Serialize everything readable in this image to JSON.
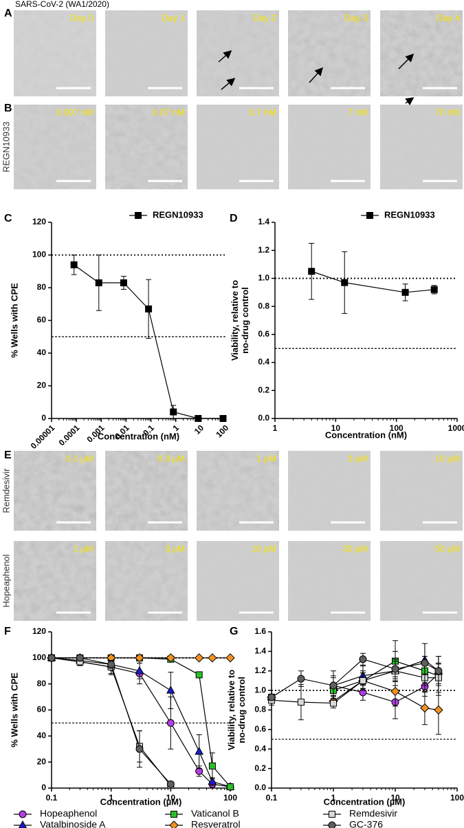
{
  "title": "SARS-CoV-2 (WA1/2020)",
  "panel_labels": [
    "A",
    "B",
    "C",
    "D",
    "E",
    "F",
    "G"
  ],
  "micrographs": [
    {
      "label": null,
      "images": [
        "Day 0",
        "Day 1",
        "Day 2",
        "Day 3",
        "Day 4"
      ]
    },
    {
      "label": "REGN10933",
      "images": [
        "0.007 nM",
        "0.07 nM",
        "0.7 nM",
        "7 nM",
        "70 nM"
      ]
    },
    {
      "label": "Remdesivir",
      "images": [
        "0.1 µM",
        "0.3 µM",
        "1 µM",
        "3 µM",
        "10 µM"
      ]
    },
    {
      "label": "Hopeaphenol",
      "images": [
        "1 µM",
        "3 µM",
        "10 µM",
        "30 µM",
        "50 µM"
      ]
    }
  ],
  "chart_data": [
    {
      "type": "line",
      "xlabel": "Concentration (nM)",
      "ylabel": [
        "% Wells with CPE"
      ],
      "xscale": "log",
      "xlim": [
        1e-05,
        100
      ],
      "xticks": [
        1e-05,
        0.0001,
        0.001,
        0.01,
        0.1,
        1,
        10,
        100
      ],
      "xtick_rotation": -45,
      "ylim": [
        0,
        120
      ],
      "yticks": [
        0,
        20,
        40,
        60,
        80,
        100,
        120
      ],
      "reference_lines": [
        100,
        50
      ],
      "legend": "upper right",
      "x": [
        8e-05,
        0.0008,
        0.008,
        0.08,
        0.8,
        8,
        80
      ],
      "series": [
        {
          "name": "REGN10933",
          "color": "#000000",
          "marker": "square",
          "values": [
            94,
            83,
            83,
            67,
            4,
            0,
            0
          ],
          "errors": [
            6,
            17,
            4,
            18,
            4,
            0,
            0
          ]
        }
      ]
    },
    {
      "type": "line",
      "xlabel": "Concentration (nM)",
      "ylabel": [
        "Viability, relative to",
        "no-drug control"
      ],
      "xscale": "log",
      "xlim": [
        1,
        1000
      ],
      "xticks": [
        1,
        10,
        100,
        1000
      ],
      "ylim": [
        0,
        1.4
      ],
      "yticks": [
        {
          "value": 0,
          "label": "0.0"
        },
        0.2,
        0.4,
        0.6,
        0.8,
        {
          "value": 1,
          "label": "1.0"
        },
        1.2,
        1.4
      ],
      "reference_lines": [
        1,
        0.5
      ],
      "legend": "upper right",
      "x": [
        4,
        14,
        140,
        420
      ],
      "series": [
        {
          "name": "REGN10933",
          "color": "#000000",
          "marker": "square",
          "values": [
            1.05,
            0.97,
            0.9,
            0.92
          ],
          "errors": [
            0.2,
            0.22,
            0.06,
            0.03
          ]
        }
      ]
    },
    {
      "type": "line",
      "xlabel": "Concentration (µM)",
      "ylabel": [
        "% Wells with CPE"
      ],
      "xscale": "log",
      "xlim": [
        0.1,
        100
      ],
      "xticks": [
        0.1,
        1,
        10,
        100
      ],
      "ylim": [
        0,
        120
      ],
      "yticks": [
        0,
        20,
        40,
        60,
        80,
        100,
        120
      ],
      "reference_lines": [
        100,
        50
      ],
      "legend": "bottom",
      "x": [
        0.1,
        0.3,
        1,
        3,
        10,
        30,
        50,
        100
      ],
      "series": [
        {
          "name": "Hopeaphenol",
          "color": "#b43ce6",
          "marker": "circle",
          "values": [
            100,
            97,
            93,
            88,
            50,
            13,
            3,
            1
          ],
          "errors": [
            0,
            2,
            6,
            8,
            20,
            4,
            2,
            0
          ]
        },
        {
          "name": "Vatalbinoside A",
          "color": "#1c1cd0",
          "marker": "triangle",
          "values": [
            100,
            98,
            95,
            90,
            75,
            28,
            5,
            1
          ],
          "errors": [
            0,
            2,
            4,
            6,
            14,
            13,
            3,
            0
          ]
        },
        {
          "name": "Vaticanol B",
          "color": "#2cbf2c",
          "marker": "square",
          "values": [
            100,
            100,
            100,
            100,
            99,
            87,
            17,
            1
          ],
          "errors": [
            0,
            0,
            0,
            0,
            1,
            2,
            10,
            0
          ]
        },
        {
          "name": "Resveratrol",
          "color": "#f0921e",
          "marker": "diamond",
          "values": [
            100,
            100,
            100,
            100,
            100,
            100,
            100,
            100
          ],
          "errors": [
            0,
            0,
            0,
            0,
            0,
            0,
            0,
            0
          ]
        },
        {
          "name": "Remdesivir",
          "color": "#d9d9d9",
          "marker": "square",
          "values": [
            100,
            97,
            93,
            32,
            2,
            null,
            null,
            null
          ],
          "errors": [
            0,
            3,
            5,
            12,
            2,
            null,
            null,
            null
          ]
        },
        {
          "name": "GC-376",
          "color": "#5f5f5f",
          "marker": "circle",
          "values": [
            100,
            100,
            95,
            30,
            3,
            null,
            null,
            null
          ],
          "errors": [
            0,
            1,
            3,
            14,
            2,
            null,
            null,
            null
          ]
        }
      ]
    },
    {
      "type": "line",
      "xlabel": "Concentration (µM)",
      "ylabel": [
        "Viability, relative to",
        "no-drug control"
      ],
      "xscale": "log",
      "xlim": [
        0.1,
        100
      ],
      "xticks": [
        0.1,
        1,
        10,
        100
      ],
      "ylim": [
        0,
        1.6
      ],
      "yticks": [
        {
          "value": 0,
          "label": "0.0"
        },
        0.2,
        0.4,
        0.6,
        0.8,
        {
          "value": 1,
          "label": "1.0"
        },
        1.2,
        1.4,
        1.6
      ],
      "reference_lines": [
        1,
        0.5
      ],
      "x": [
        0.1,
        0.3,
        1,
        3,
        10,
        30,
        50
      ],
      "series": [
        {
          "color": "#b43ce6",
          "marker": "circle",
          "values": [
            0.92,
            null,
            1.05,
            0.98,
            0.88,
            1.04,
            1.17
          ],
          "errors": [
            0.03,
            null,
            0.1,
            0.08,
            0.17,
            0.1,
            0.1
          ]
        },
        {
          "color": "#1c1cd0",
          "marker": "triangle",
          "values": [
            0.93,
            null,
            1.05,
            1.15,
            1.2,
            1.31,
            1.2
          ],
          "errors": [
            0.03,
            null,
            0.08,
            0.1,
            0.2,
            0.17,
            0.15
          ]
        },
        {
          "color": "#2cbf2c",
          "marker": "square",
          "values": [
            0.93,
            null,
            1.0,
            1.1,
            1.3,
            1.2,
            1.15
          ],
          "errors": [
            0.03,
            null,
            0.06,
            0.08,
            0.21,
            0.15,
            0.2
          ]
        },
        {
          "color": "#f0921e",
          "marker": "diamond",
          "values": [
            0.93,
            null,
            0.89,
            1.1,
            0.99,
            0.82,
            0.8
          ],
          "errors": [
            0.03,
            null,
            0.05,
            0.1,
            0.15,
            0.17,
            0.25
          ]
        },
        {
          "color": "#d9d9d9",
          "marker": "square",
          "values": [
            0.9,
            0.88,
            0.87,
            1.1,
            1.2,
            1.13,
            1.13
          ],
          "errors": [
            0.05,
            0.18,
            0.05,
            0.08,
            0.1,
            0.15,
            0.15
          ]
        },
        {
          "color": "#5f5f5f",
          "marker": "circle",
          "values": [
            0.93,
            1.12,
            1.05,
            1.32,
            1.22,
            1.28,
            1.2
          ],
          "errors": [
            0.03,
            0.08,
            0.15,
            0.06,
            0.1,
            0.2,
            0.15
          ]
        }
      ]
    }
  ]
}
